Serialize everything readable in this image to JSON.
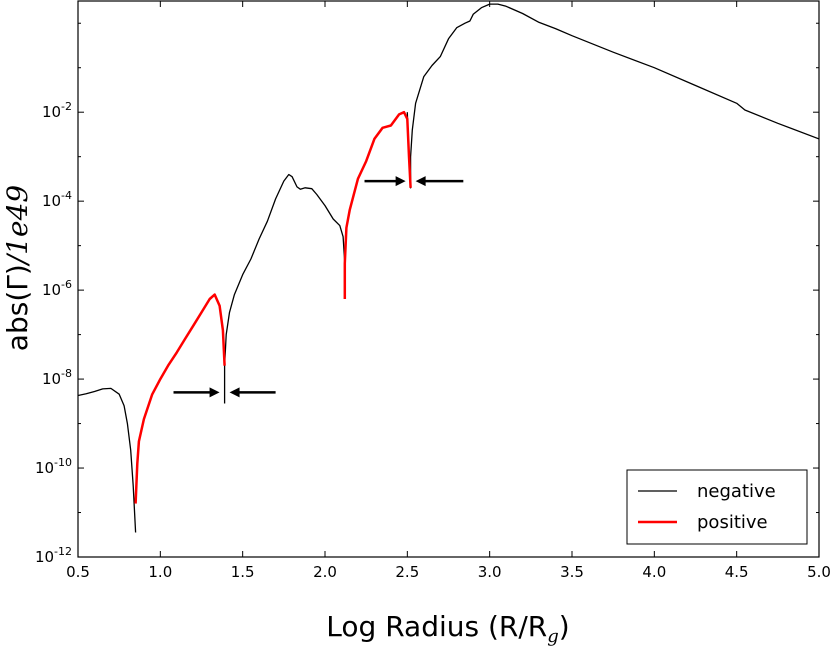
{
  "chart_data": {
    "type": "line",
    "title": "",
    "xlabel": {
      "main": "Log Radius (R/R",
      "sub": "g",
      "close": ")"
    },
    "ylabel": {
      "main": "abs(Γ)",
      "italic": "/1e49"
    },
    "xlim": [
      0.5,
      5.0
    ],
    "ylim_log10": [
      -12,
      0.5
    ],
    "yscale": "log",
    "grid": false,
    "legend_position": "bottom-right",
    "x_ticks": [
      "0.5",
      "1.0",
      "1.5",
      "2.0",
      "2.5",
      "3.0",
      "3.5",
      "4.0",
      "4.5",
      "5.0"
    ],
    "y_ticks": [
      {
        "base": "10",
        "exp": "-12",
        "log": -12
      },
      {
        "base": "10",
        "exp": "-10",
        "log": -10
      },
      {
        "base": "10",
        "exp": "-8",
        "log": -8
      },
      {
        "base": "10",
        "exp": "-6",
        "log": -6
      },
      {
        "base": "10",
        "exp": "-4",
        "log": -4
      },
      {
        "base": "10",
        "exp": "-2",
        "log": -2
      }
    ],
    "series": [
      {
        "name": "negative",
        "color": "#000000",
        "segments": [
          [
            [
              0.5,
              -8.37
            ],
            [
              0.55,
              -8.33
            ],
            [
              0.6,
              -8.28
            ],
            [
              0.65,
              -8.22
            ],
            [
              0.7,
              -8.21
            ],
            [
              0.75,
              -8.34
            ],
            [
              0.78,
              -8.6
            ],
            [
              0.8,
              -9.0
            ],
            [
              0.82,
              -9.6
            ],
            [
              0.835,
              -10.4
            ],
            [
              0.85,
              -11.45
            ]
          ],
          [
            [
              1.39,
              -8.55
            ],
            [
              1.39,
              -7.7
            ],
            [
              1.4,
              -7.0
            ],
            [
              1.42,
              -6.5
            ],
            [
              1.45,
              -6.1
            ],
            [
              1.5,
              -5.65
            ],
            [
              1.55,
              -5.3
            ],
            [
              1.6,
              -4.85
            ],
            [
              1.65,
              -4.45
            ],
            [
              1.7,
              -3.95
            ],
            [
              1.75,
              -3.55
            ],
            [
              1.78,
              -3.4
            ],
            [
              1.8,
              -3.45
            ],
            [
              1.83,
              -3.68
            ],
            [
              1.85,
              -3.73
            ],
            [
              1.88,
              -3.7
            ],
            [
              1.92,
              -3.72
            ],
            [
              1.95,
              -3.85
            ],
            [
              2.0,
              -4.1
            ],
            [
              2.05,
              -4.4
            ],
            [
              2.09,
              -4.55
            ],
            [
              2.11,
              -4.8
            ],
            [
              2.12,
              -5.4
            ]
          ],
          [
            [
              2.5,
              -2.0
            ],
            [
              2.51,
              -3.0
            ],
            [
              2.52,
              -3.7
            ],
            [
              2.52,
              -3.0
            ],
            [
              2.53,
              -2.4
            ],
            [
              2.55,
              -1.8
            ],
            [
              2.6,
              -1.2
            ],
            [
              2.65,
              -0.95
            ],
            [
              2.7,
              -0.75
            ],
            [
              2.75,
              -0.35
            ],
            [
              2.8,
              -0.1
            ],
            [
              2.85,
              0.0
            ],
            [
              2.88,
              0.05
            ],
            [
              2.9,
              0.2
            ],
            [
              2.95,
              0.35
            ],
            [
              3.0,
              0.43
            ],
            [
              3.05,
              0.43
            ],
            [
              3.1,
              0.38
            ],
            [
              3.2,
              0.22
            ],
            [
              3.3,
              0.02
            ],
            [
              3.4,
              -0.12
            ],
            [
              3.5,
              -0.28
            ],
            [
              3.75,
              -0.65
            ],
            [
              4.0,
              -1.0
            ],
            [
              4.25,
              -1.4
            ],
            [
              4.5,
              -1.8
            ],
            [
              4.55,
              -1.95
            ],
            [
              4.75,
              -2.25
            ],
            [
              5.0,
              -2.6
            ]
          ]
        ]
      },
      {
        "name": "positive",
        "color": "#ff0000",
        "segments": [
          [
            [
              0.85,
              -10.8
            ],
            [
              0.86,
              -9.9
            ],
            [
              0.87,
              -9.4
            ],
            [
              0.9,
              -8.9
            ],
            [
              0.95,
              -8.35
            ],
            [
              1.0,
              -8.0
            ],
            [
              1.05,
              -7.68
            ],
            [
              1.1,
              -7.4
            ],
            [
              1.15,
              -7.1
            ],
            [
              1.2,
              -6.8
            ],
            [
              1.25,
              -6.5
            ],
            [
              1.3,
              -6.2
            ],
            [
              1.33,
              -6.1
            ],
            [
              1.36,
              -6.35
            ],
            [
              1.38,
              -6.9
            ],
            [
              1.39,
              -7.7
            ]
          ],
          [
            [
              2.12,
              -6.2
            ],
            [
              2.12,
              -5.4
            ],
            [
              2.13,
              -4.6
            ],
            [
              2.15,
              -4.2
            ],
            [
              2.2,
              -3.5
            ],
            [
              2.25,
              -3.1
            ],
            [
              2.3,
              -2.6
            ],
            [
              2.35,
              -2.35
            ],
            [
              2.4,
              -2.3
            ],
            [
              2.45,
              -2.05
            ],
            [
              2.48,
              -2.0
            ],
            [
              2.5,
              -2.15
            ],
            [
              2.51,
              -3.0
            ],
            [
              2.52,
              -3.7
            ]
          ]
        ]
      }
    ],
    "annotations": [
      {
        "type": "arrow-pair",
        "gap_x": 1.39,
        "y_log": -8.3,
        "left_start": 1.08,
        "right_start": 1.7
      },
      {
        "type": "arrow-pair",
        "gap_x": 2.52,
        "y_log": -3.55,
        "left_start": 2.24,
        "right_start": 2.84
      }
    ]
  }
}
